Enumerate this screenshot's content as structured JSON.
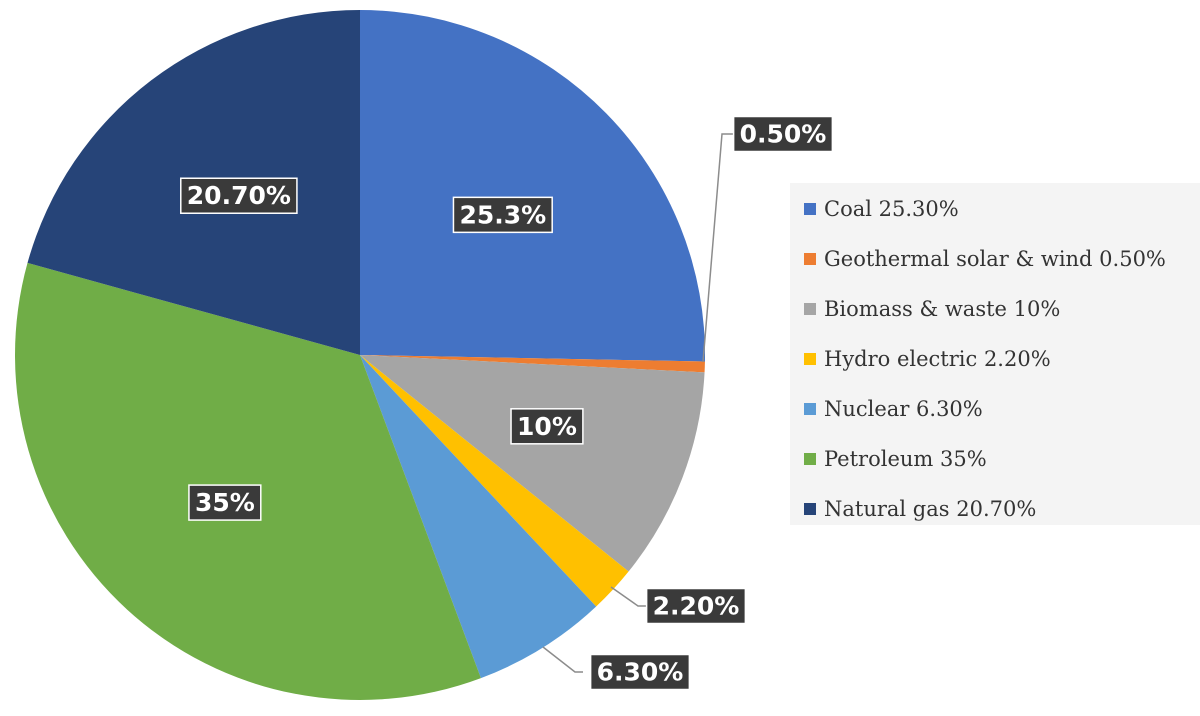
{
  "chart_data": {
    "type": "pie",
    "title": "",
    "slices": [
      {
        "name": "Coal",
        "value": 25.3,
        "data_label": "25.3%",
        "legend_label": "Coal 25.30%",
        "color": "#4472c4"
      },
      {
        "name": "Geothermal solar & wind",
        "value": 0.5,
        "data_label": "0.50%",
        "legend_label": "Geothermal solar & wind 0.50%",
        "color": "#ed7d31"
      },
      {
        "name": "Biomass & waste",
        "value": 10,
        "data_label": "10%",
        "legend_label": "Biomass & waste 10%",
        "color": "#a5a5a5"
      },
      {
        "name": "Hydro electric",
        "value": 2.2,
        "data_label": "2.20%",
        "legend_label": "Hydro electric 2.20%",
        "color": "#ffc000"
      },
      {
        "name": "Nuclear",
        "value": 6.3,
        "data_label": "6.30%",
        "legend_label": "Nuclear 6.30%",
        "color": "#5b9bd5"
      },
      {
        "name": "Petroleum",
        "value": 35,
        "data_label": "35%",
        "legend_label": "Petroleum 35%",
        "color": "#70ad47"
      },
      {
        "name": "Natural gas",
        "value": 20.7,
        "data_label": "20.70%",
        "legend_label": "Natural gas 20.70%",
        "color": "#264478"
      }
    ],
    "start_angle": "12 o'clock",
    "direction": "clockwise",
    "legend_position": "right",
    "data_label_style": {
      "background": "#3a3a3a",
      "text_color": "#ffffff"
    }
  }
}
